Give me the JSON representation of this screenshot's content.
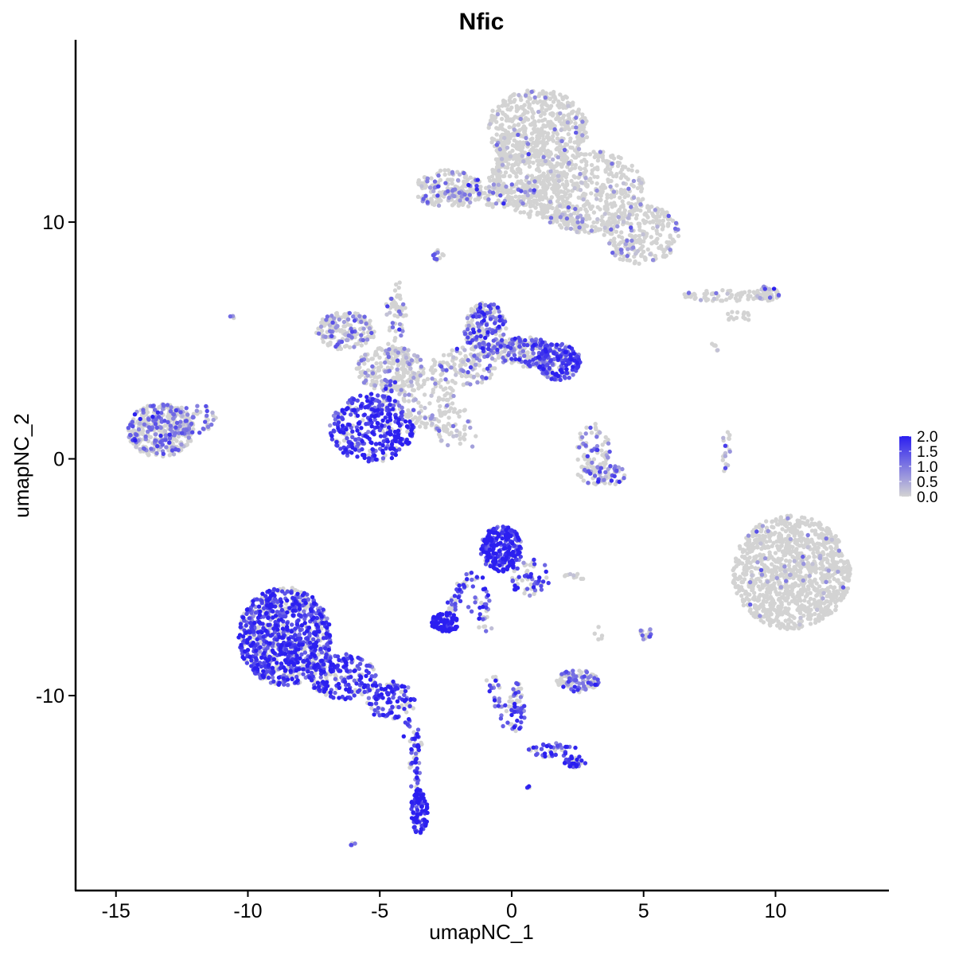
{
  "chart_data": {
    "type": "scatter",
    "title": "Nfic",
    "xlabel": "umapNC_1",
    "ylabel": "umapNC_2",
    "xlim": [
      -16.5,
      14.3
    ],
    "ylim": [
      -18.2,
      17.7
    ],
    "xticks": [
      -15,
      -10,
      -5,
      0,
      5,
      10
    ],
    "xtick_labels": [
      "-15",
      "-10",
      "-5",
      "0",
      "5",
      "10"
    ],
    "yticks": [
      -10,
      0,
      10
    ],
    "ytick_labels": [
      "-10",
      "0",
      "10"
    ],
    "grid": false,
    "color_scale": {
      "low": "#d3d3d3",
      "high": "#2b1ff0",
      "min": 0.0,
      "max": 2.0,
      "ticks": [
        0.0,
        0.5,
        1.0,
        1.5,
        2.0
      ],
      "tick_labels": [
        "0.0",
        "0.5",
        "1.0",
        "1.5",
        "2.0"
      ]
    },
    "legend_position": "right",
    "clusters": [
      {
        "x": 1.0,
        "y": 14.0,
        "sx": 1.2,
        "sy": 1.0,
        "n": 500,
        "expr": 0.12
      },
      {
        "x": 2.8,
        "y": 11.3,
        "sx": 1.4,
        "sy": 1.1,
        "n": 500,
        "expr": 0.14
      },
      {
        "x": 4.9,
        "y": 9.5,
        "sx": 0.9,
        "sy": 0.8,
        "n": 250,
        "expr": 0.25
      },
      {
        "x": 0.6,
        "y": 11.8,
        "sx": 0.8,
        "sy": 1.0,
        "n": 200,
        "expr": 0.1
      },
      {
        "x": -2.4,
        "y": 11.4,
        "sx": 0.8,
        "sy": 0.5,
        "n": 160,
        "expr": 0.5
      },
      {
        "x": -0.8,
        "y": 11.1,
        "sx": 1.3,
        "sy": 0.3,
        "n": 120,
        "expr": 0.3
      },
      {
        "x": -2.8,
        "y": 8.6,
        "sx": 0.15,
        "sy": 0.15,
        "n": 12,
        "expr": 0.8
      },
      {
        "x": 8.1,
        "y": 6.9,
        "sx": 1.0,
        "sy": 0.15,
        "n": 70,
        "expr": 0.15
      },
      {
        "x": 9.7,
        "y": 7.0,
        "sx": 0.3,
        "sy": 0.2,
        "n": 50,
        "expr": 0.25
      },
      {
        "x": 8.6,
        "y": 6.0,
        "sx": 0.3,
        "sy": 0.15,
        "n": 15,
        "expr": 0.1
      },
      {
        "x": 7.7,
        "y": 4.7,
        "sx": 0.1,
        "sy": 0.15,
        "n": 6,
        "expr": 0.05
      },
      {
        "x": -13.3,
        "y": 1.2,
        "sx": 0.8,
        "sy": 0.7,
        "n": 380,
        "expr": 0.6
      },
      {
        "x": -12.0,
        "y": 1.7,
        "sx": 0.5,
        "sy": 0.4,
        "n": 60,
        "expr": 0.55
      },
      {
        "x": -10.6,
        "y": 6.0,
        "sx": 0.06,
        "sy": 0.06,
        "n": 4,
        "expr": 0.5
      },
      {
        "x": -6.3,
        "y": 5.4,
        "sx": 0.7,
        "sy": 0.5,
        "n": 180,
        "expr": 0.5
      },
      {
        "x": -4.6,
        "y": 3.8,
        "sx": 0.8,
        "sy": 0.6,
        "n": 220,
        "expr": 0.35
      },
      {
        "x": -4.4,
        "y": 6.2,
        "sx": 0.25,
        "sy": 0.6,
        "n": 30,
        "expr": 0.4
      },
      {
        "x": -5.3,
        "y": 1.3,
        "sx": 1.0,
        "sy": 0.9,
        "n": 380,
        "expr": 1.3
      },
      {
        "x": -3.2,
        "y": 2.5,
        "sx": 0.7,
        "sy": 0.8,
        "n": 110,
        "expr": 0.3
      },
      {
        "x": -1.8,
        "y": 3.9,
        "sx": 0.8,
        "sy": 0.5,
        "n": 130,
        "expr": 0.5
      },
      {
        "x": -1.0,
        "y": 5.5,
        "sx": 0.5,
        "sy": 0.7,
        "n": 210,
        "expr": 0.9
      },
      {
        "x": 0.5,
        "y": 4.5,
        "sx": 0.7,
        "sy": 0.4,
        "n": 200,
        "expr": 0.8
      },
      {
        "x": 1.8,
        "y": 4.1,
        "sx": 0.5,
        "sy": 0.5,
        "n": 200,
        "expr": 1.1
      },
      {
        "x": -2.3,
        "y": 1.4,
        "sx": 0.5,
        "sy": 0.6,
        "n": 35,
        "expr": 0.3
      },
      {
        "x": 3.1,
        "y": 0.4,
        "sx": 0.4,
        "sy": 0.7,
        "n": 80,
        "expr": 0.6
      },
      {
        "x": 3.4,
        "y": -0.7,
        "sx": 0.6,
        "sy": 0.3,
        "n": 70,
        "expr": 0.7
      },
      {
        "x": 8.1,
        "y": 0.3,
        "sx": 0.15,
        "sy": 0.6,
        "n": 20,
        "expr": 0.5
      },
      {
        "x": 10.6,
        "y": -4.8,
        "sx": 1.4,
        "sy": 1.5,
        "n": 1100,
        "expr": 0.08
      },
      {
        "x": -0.4,
        "y": -3.8,
        "sx": 0.5,
        "sy": 0.6,
        "n": 260,
        "expr": 1.4
      },
      {
        "x": 0.7,
        "y": -5.0,
        "sx": 0.5,
        "sy": 0.5,
        "n": 60,
        "expr": 1.1
      },
      {
        "x": -1.2,
        "y": -5.9,
        "sx": 0.3,
        "sy": 0.6,
        "n": 30,
        "expr": 1.2
      },
      {
        "x": -2.5,
        "y": -6.9,
        "sx": 0.35,
        "sy": 0.25,
        "n": 80,
        "expr": 1.8
      },
      {
        "x": -1.0,
        "y": -7.0,
        "sx": 0.2,
        "sy": 0.2,
        "n": 6,
        "expr": 0.3
      },
      {
        "x": 2.4,
        "y": -5.0,
        "sx": 0.3,
        "sy": 0.1,
        "n": 10,
        "expr": 0.2
      },
      {
        "x": 2.5,
        "y": -9.4,
        "sx": 0.5,
        "sy": 0.3,
        "n": 110,
        "expr": 0.7
      },
      {
        "x": 5.1,
        "y": -7.4,
        "sx": 0.15,
        "sy": 0.2,
        "n": 15,
        "expr": 0.6
      },
      {
        "x": 3.3,
        "y": -7.4,
        "sx": 0.1,
        "sy": 0.2,
        "n": 5,
        "expr": 0.1
      },
      {
        "x": -8.6,
        "y": -7.5,
        "sx": 1.1,
        "sy": 1.3,
        "n": 900,
        "expr": 1.2
      },
      {
        "x": -6.4,
        "y": -9.2,
        "sx": 0.8,
        "sy": 0.6,
        "n": 200,
        "expr": 1.3
      },
      {
        "x": -4.6,
        "y": -10.2,
        "sx": 0.6,
        "sy": 0.5,
        "n": 110,
        "expr": 1.3
      },
      {
        "x": -3.6,
        "y": -12.5,
        "sx": 0.15,
        "sy": 0.7,
        "n": 30,
        "expr": 1.2
      },
      {
        "x": -3.5,
        "y": -14.9,
        "sx": 0.2,
        "sy": 0.6,
        "n": 90,
        "expr": 1.6
      },
      {
        "x": -6.0,
        "y": -16.3,
        "sx": 0.08,
        "sy": 0.06,
        "n": 5,
        "expr": 0.9
      },
      {
        "x": 0.6,
        "y": -13.9,
        "sx": 0.06,
        "sy": 0.06,
        "n": 4,
        "expr": 1.0
      },
      {
        "x": 0.2,
        "y": -10.5,
        "sx": 0.2,
        "sy": 0.7,
        "n": 55,
        "expr": 1.0
      },
      {
        "x": 1.5,
        "y": -12.3,
        "sx": 0.6,
        "sy": 0.2,
        "n": 45,
        "expr": 1.0
      },
      {
        "x": 2.4,
        "y": -12.8,
        "sx": 0.25,
        "sy": 0.15,
        "n": 35,
        "expr": 1.4
      }
    ],
    "filaments": [
      {
        "from": [
          -0.8,
          11.2
        ],
        "to": [
          -0.2,
          13.5
        ],
        "n": 80,
        "expr": 0.1
      },
      {
        "from": [
          1.5,
          10.5
        ],
        "to": [
          2.8,
          9.8
        ],
        "n": 60,
        "expr": 0.2
      },
      {
        "from": [
          -3.3,
          1.6
        ],
        "to": [
          -1.3,
          0.7
        ],
        "n": 30,
        "expr": 0.2
      },
      {
        "from": [
          -4.3,
          7.6
        ],
        "to": [
          -4.3,
          3.3
        ],
        "n": 40,
        "expr": 0.5
      },
      {
        "from": [
          -5.1,
          1.8
        ],
        "to": [
          -4.5,
          3.5
        ],
        "n": 30,
        "expr": 0.8
      },
      {
        "from": [
          -1.6,
          -4.9
        ],
        "to": [
          -2.4,
          -6.6
        ],
        "n": 40,
        "expr": 1.1
      },
      {
        "from": [
          -0.8,
          -9.3
        ],
        "to": [
          -0.1,
          -11.5
        ],
        "n": 30,
        "expr": 1.0
      },
      {
        "from": [
          -4.0,
          -10.8
        ],
        "to": [
          -3.5,
          -14.2
        ],
        "n": 35,
        "expr": 1.2
      }
    ]
  }
}
